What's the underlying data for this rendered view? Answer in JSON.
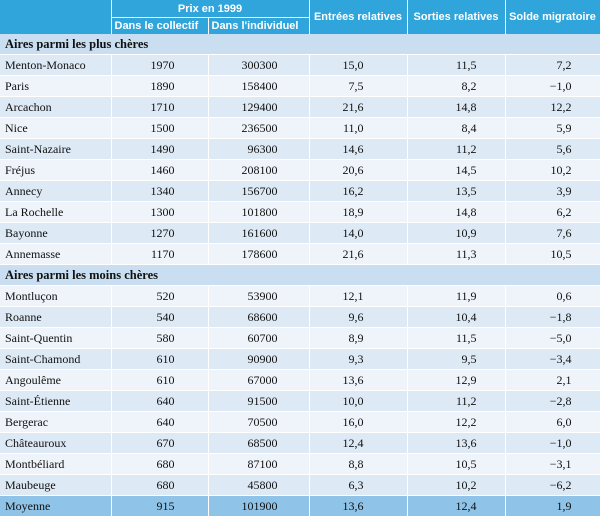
{
  "header": {
    "prix_group": "Prix en 1999",
    "col_collectif": "Dans le collectif",
    "col_individuel": "Dans l'individuel",
    "col_entrees": "Entrées relatives",
    "col_sorties": "Sorties relatives",
    "col_solde": "Solde migratoire"
  },
  "sections": [
    {
      "title": "Aires parmi les plus chères",
      "rows": [
        [
          "Menton-Monaco",
          "1970",
          "300300",
          "15,0",
          "11,5",
          "7,2"
        ],
        [
          "Paris",
          "1890",
          "158400",
          "7,5",
          "8,2",
          "−1,0"
        ],
        [
          "Arcachon",
          "1710",
          "129400",
          "21,6",
          "14,8",
          "12,2"
        ],
        [
          "Nice",
          "1500",
          "236500",
          "11,0",
          "8,4",
          "5,9"
        ],
        [
          "Saint-Nazaire",
          "1490",
          "96300",
          "14,6",
          "11,2",
          "5,6"
        ],
        [
          "Fréjus",
          "1460",
          "208100",
          "20,6",
          "14,5",
          "10,2"
        ],
        [
          "Annecy",
          "1340",
          "156700",
          "16,2",
          "13,5",
          "3,9"
        ],
        [
          "La Rochelle",
          "1300",
          "101800",
          "18,9",
          "14,8",
          "6,2"
        ],
        [
          "Bayonne",
          "1270",
          "161600",
          "14,0",
          "10,9",
          "7,6"
        ],
        [
          "Annemasse",
          "1170",
          "178600",
          "21,6",
          "11,3",
          "10,5"
        ]
      ]
    },
    {
      "title": "Aires parmi les moins chères",
      "rows": [
        [
          "Montluçon",
          "520",
          "53900",
          "12,1",
          "11,9",
          "0,6"
        ],
        [
          "Roanne",
          "540",
          "68600",
          "9,6",
          "10,4",
          "−1,8"
        ],
        [
          "Saint-Quentin",
          "580",
          "60700",
          "8,9",
          "11,5",
          "−5,0"
        ],
        [
          "Saint-Chamond",
          "610",
          "90900",
          "9,3",
          "9,5",
          "−3,4"
        ],
        [
          "Angoulême",
          "610",
          "67000",
          "13,6",
          "12,9",
          "2,1"
        ],
        [
          "Saint-Étienne",
          "640",
          "91500",
          "10,0",
          "11,2",
          "−2,8"
        ],
        [
          "Bergerac",
          "640",
          "70500",
          "16,0",
          "12,2",
          "6,0"
        ],
        [
          "Châteauroux",
          "670",
          "68500",
          "12,4",
          "13,6",
          "−1,0"
        ],
        [
          "Montbéliard",
          "680",
          "87100",
          "8,8",
          "10,5",
          "−3,1"
        ],
        [
          "Maubeuge",
          "680",
          "45800",
          "6,3",
          "10,2",
          "−6,2"
        ]
      ]
    }
  ],
  "total": [
    "Moyenne",
    "915",
    "101900",
    "13,6",
    "12,4",
    "1,9"
  ]
}
